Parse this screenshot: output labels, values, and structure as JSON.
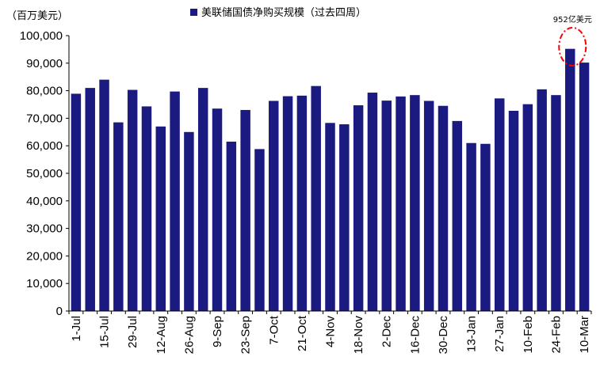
{
  "chart_data": {
    "type": "bar",
    "unit_label": "（百万美元）",
    "legend": {
      "label": "美联储国债净购买规模（过去四周）",
      "placement": "top-center"
    },
    "bar_color": "#1A1A80",
    "ylim": [
      0,
      100000
    ],
    "yticks": [
      "0",
      "10,000",
      "20,000",
      "30,000",
      "40,000",
      "50,000",
      "60,000",
      "70,000",
      "80,000",
      "90,000",
      "100,000"
    ],
    "x_tick_labels": [
      "1-Jul",
      "15-Jul",
      "29-Jul",
      "12-Aug",
      "26-Aug",
      "9-Sep",
      "23-Sep",
      "7-Oct",
      "21-Oct",
      "4-Nov",
      "18-Nov",
      "2-Dec",
      "16-Dec",
      "30-Dec",
      "13-Jan",
      "27-Jan",
      "10-Feb",
      "24-Feb",
      "10-Mar"
    ],
    "values": [
      78900,
      81000,
      84000,
      68500,
      80300,
      74300,
      67000,
      79700,
      65000,
      81000,
      73500,
      61500,
      73000,
      58800,
      76300,
      78000,
      78200,
      81700,
      68300,
      67800,
      74700,
      79300,
      76400,
      77900,
      78400,
      76300,
      74500,
      69000,
      61000,
      60700,
      77200,
      72700,
      75100,
      80500,
      78400,
      95200,
      90200
    ],
    "annotation": {
      "text": "952亿美元",
      "target_index": 35,
      "highlight_color": "#FF0000"
    },
    "grid": false
  }
}
